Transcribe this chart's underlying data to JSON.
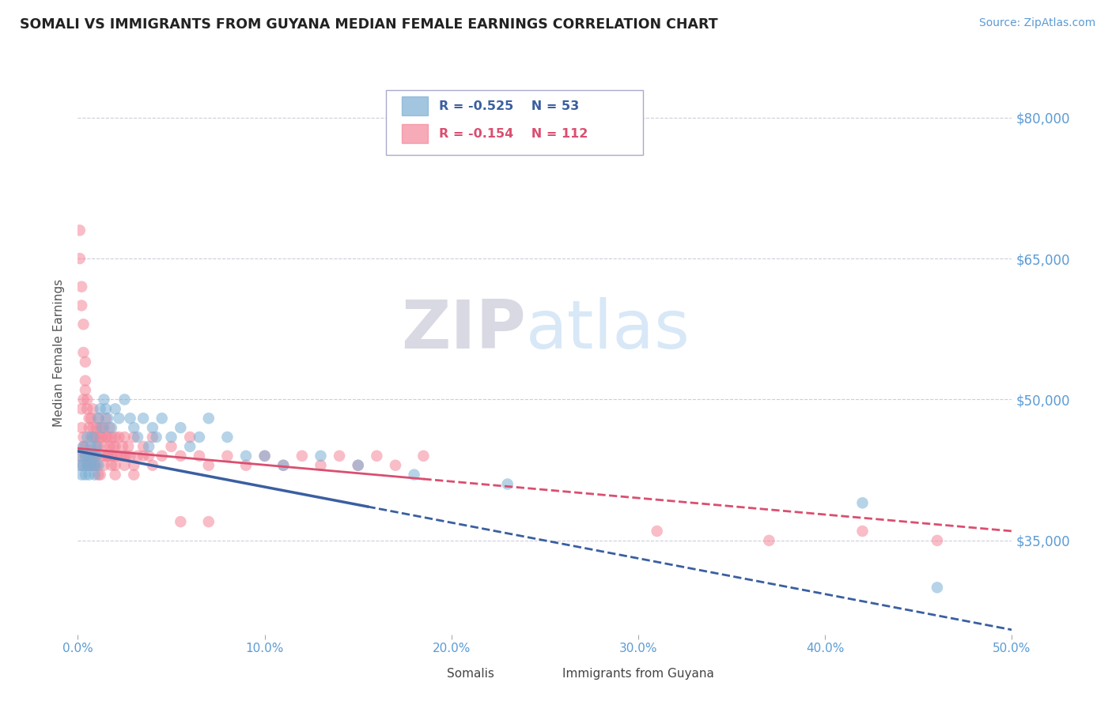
{
  "title": "SOMALI VS IMMIGRANTS FROM GUYANA MEDIAN FEMALE EARNINGS CORRELATION CHART",
  "source_text": "Source: ZipAtlas.com",
  "ylabel": "Median Female Earnings",
  "xmin": 0.0,
  "xmax": 0.5,
  "ymin": 25000,
  "ymax": 85000,
  "yticks": [
    35000,
    50000,
    65000,
    80000
  ],
  "ytick_labels": [
    "$35,000",
    "$50,000",
    "$65,000",
    "$80,000"
  ],
  "xticks": [
    0.0,
    0.1,
    0.2,
    0.3,
    0.4,
    0.5
  ],
  "xtick_labels": [
    "0.0%",
    "10.0%",
    "20.0%",
    "30.0%",
    "40.0%",
    "50.0%"
  ],
  "color_somali": "#7BAFD4",
  "color_guyana": "#F4879A",
  "color_trendline_somali": "#3A5FA0",
  "color_trendline_guyana": "#D94F70",
  "watermark_zip": "ZIP",
  "watermark_atlas": "atlas",
  "background_color": "#FFFFFF",
  "axis_label_color": "#5B9BD5",
  "tick_color": "#5B9BD5",
  "grid_color": "#CCCCDD",
  "trendline_somali_x0": 0.0,
  "trendline_somali_y0": 44500,
  "trendline_somali_x1": 0.5,
  "trendline_somali_y1": 25500,
  "trendline_somali_solid_end": 0.155,
  "trendline_guyana_x0": 0.0,
  "trendline_guyana_y0": 44800,
  "trendline_guyana_x1": 0.5,
  "trendline_guyana_y1": 36000,
  "trendline_guyana_solid_end": 0.185,
  "somali_x": [
    0.001,
    0.002,
    0.002,
    0.003,
    0.003,
    0.004,
    0.004,
    0.005,
    0.005,
    0.006,
    0.006,
    0.007,
    0.007,
    0.008,
    0.008,
    0.009,
    0.009,
    0.01,
    0.01,
    0.011,
    0.011,
    0.012,
    0.013,
    0.014,
    0.015,
    0.016,
    0.018,
    0.02,
    0.022,
    0.025,
    0.028,
    0.03,
    0.032,
    0.035,
    0.038,
    0.04,
    0.042,
    0.045,
    0.05,
    0.055,
    0.06,
    0.065,
    0.07,
    0.08,
    0.09,
    0.1,
    0.11,
    0.13,
    0.15,
    0.18,
    0.23,
    0.42,
    0.46
  ],
  "somali_y": [
    43000,
    42000,
    44000,
    45000,
    43000,
    42000,
    44000,
    46000,
    43000,
    42000,
    44000,
    43000,
    45000,
    44000,
    46000,
    43000,
    42000,
    44000,
    45000,
    43000,
    48000,
    49000,
    47000,
    50000,
    49000,
    48000,
    47000,
    49000,
    48000,
    50000,
    48000,
    47000,
    46000,
    48000,
    45000,
    47000,
    46000,
    48000,
    46000,
    47000,
    45000,
    46000,
    48000,
    46000,
    44000,
    44000,
    43000,
    44000,
    43000,
    42000,
    41000,
    39000,
    30000
  ],
  "guyana_x": [
    0.001,
    0.001,
    0.002,
    0.002,
    0.003,
    0.003,
    0.004,
    0.004,
    0.005,
    0.005,
    0.006,
    0.006,
    0.007,
    0.007,
    0.008,
    0.008,
    0.009,
    0.009,
    0.01,
    0.01,
    0.011,
    0.011,
    0.012,
    0.012,
    0.013,
    0.013,
    0.014,
    0.014,
    0.015,
    0.015,
    0.016,
    0.016,
    0.017,
    0.017,
    0.018,
    0.018,
    0.019,
    0.019,
    0.02,
    0.02,
    0.021,
    0.022,
    0.023,
    0.024,
    0.025,
    0.026,
    0.027,
    0.028,
    0.03,
    0.032,
    0.035,
    0.038,
    0.04,
    0.045,
    0.05,
    0.055,
    0.06,
    0.065,
    0.07,
    0.08,
    0.09,
    0.1,
    0.11,
    0.12,
    0.13,
    0.14,
    0.15,
    0.16,
    0.17,
    0.185,
    0.001,
    0.002,
    0.003,
    0.004,
    0.005,
    0.006,
    0.007,
    0.008,
    0.009,
    0.01,
    0.012,
    0.014,
    0.016,
    0.018,
    0.02,
    0.025,
    0.03,
    0.035,
    0.04,
    0.002,
    0.003,
    0.004,
    0.005,
    0.006,
    0.007,
    0.008,
    0.009,
    0.01,
    0.011,
    0.015,
    0.02,
    0.025,
    0.03,
    0.055,
    0.07,
    0.31,
    0.37,
    0.42,
    0.46,
    0.002,
    0.003,
    0.004
  ],
  "guyana_y": [
    68000,
    65000,
    62000,
    60000,
    58000,
    55000,
    54000,
    52000,
    50000,
    49000,
    48000,
    47000,
    46000,
    48000,
    49000,
    47000,
    46000,
    45000,
    47000,
    46000,
    48000,
    45000,
    47000,
    46000,
    44000,
    46000,
    47000,
    45000,
    46000,
    48000,
    44000,
    46000,
    45000,
    47000,
    44000,
    46000,
    45000,
    44000,
    46000,
    45000,
    44000,
    46000,
    44000,
    45000,
    46000,
    44000,
    45000,
    44000,
    46000,
    44000,
    45000,
    44000,
    46000,
    44000,
    45000,
    44000,
    46000,
    44000,
    43000,
    44000,
    43000,
    44000,
    43000,
    44000,
    43000,
    44000,
    43000,
    44000,
    43000,
    44000,
    44000,
    43000,
    45000,
    44000,
    43000,
    44000,
    43000,
    44000,
    43000,
    44000,
    42000,
    43000,
    44000,
    43000,
    42000,
    43000,
    42000,
    44000,
    43000,
    47000,
    46000,
    45000,
    44000,
    43000,
    44000,
    43000,
    44000,
    43000,
    42000,
    44000,
    43000,
    44000,
    43000,
    37000,
    37000,
    36000,
    35000,
    36000,
    35000,
    49000,
    50000,
    51000
  ]
}
